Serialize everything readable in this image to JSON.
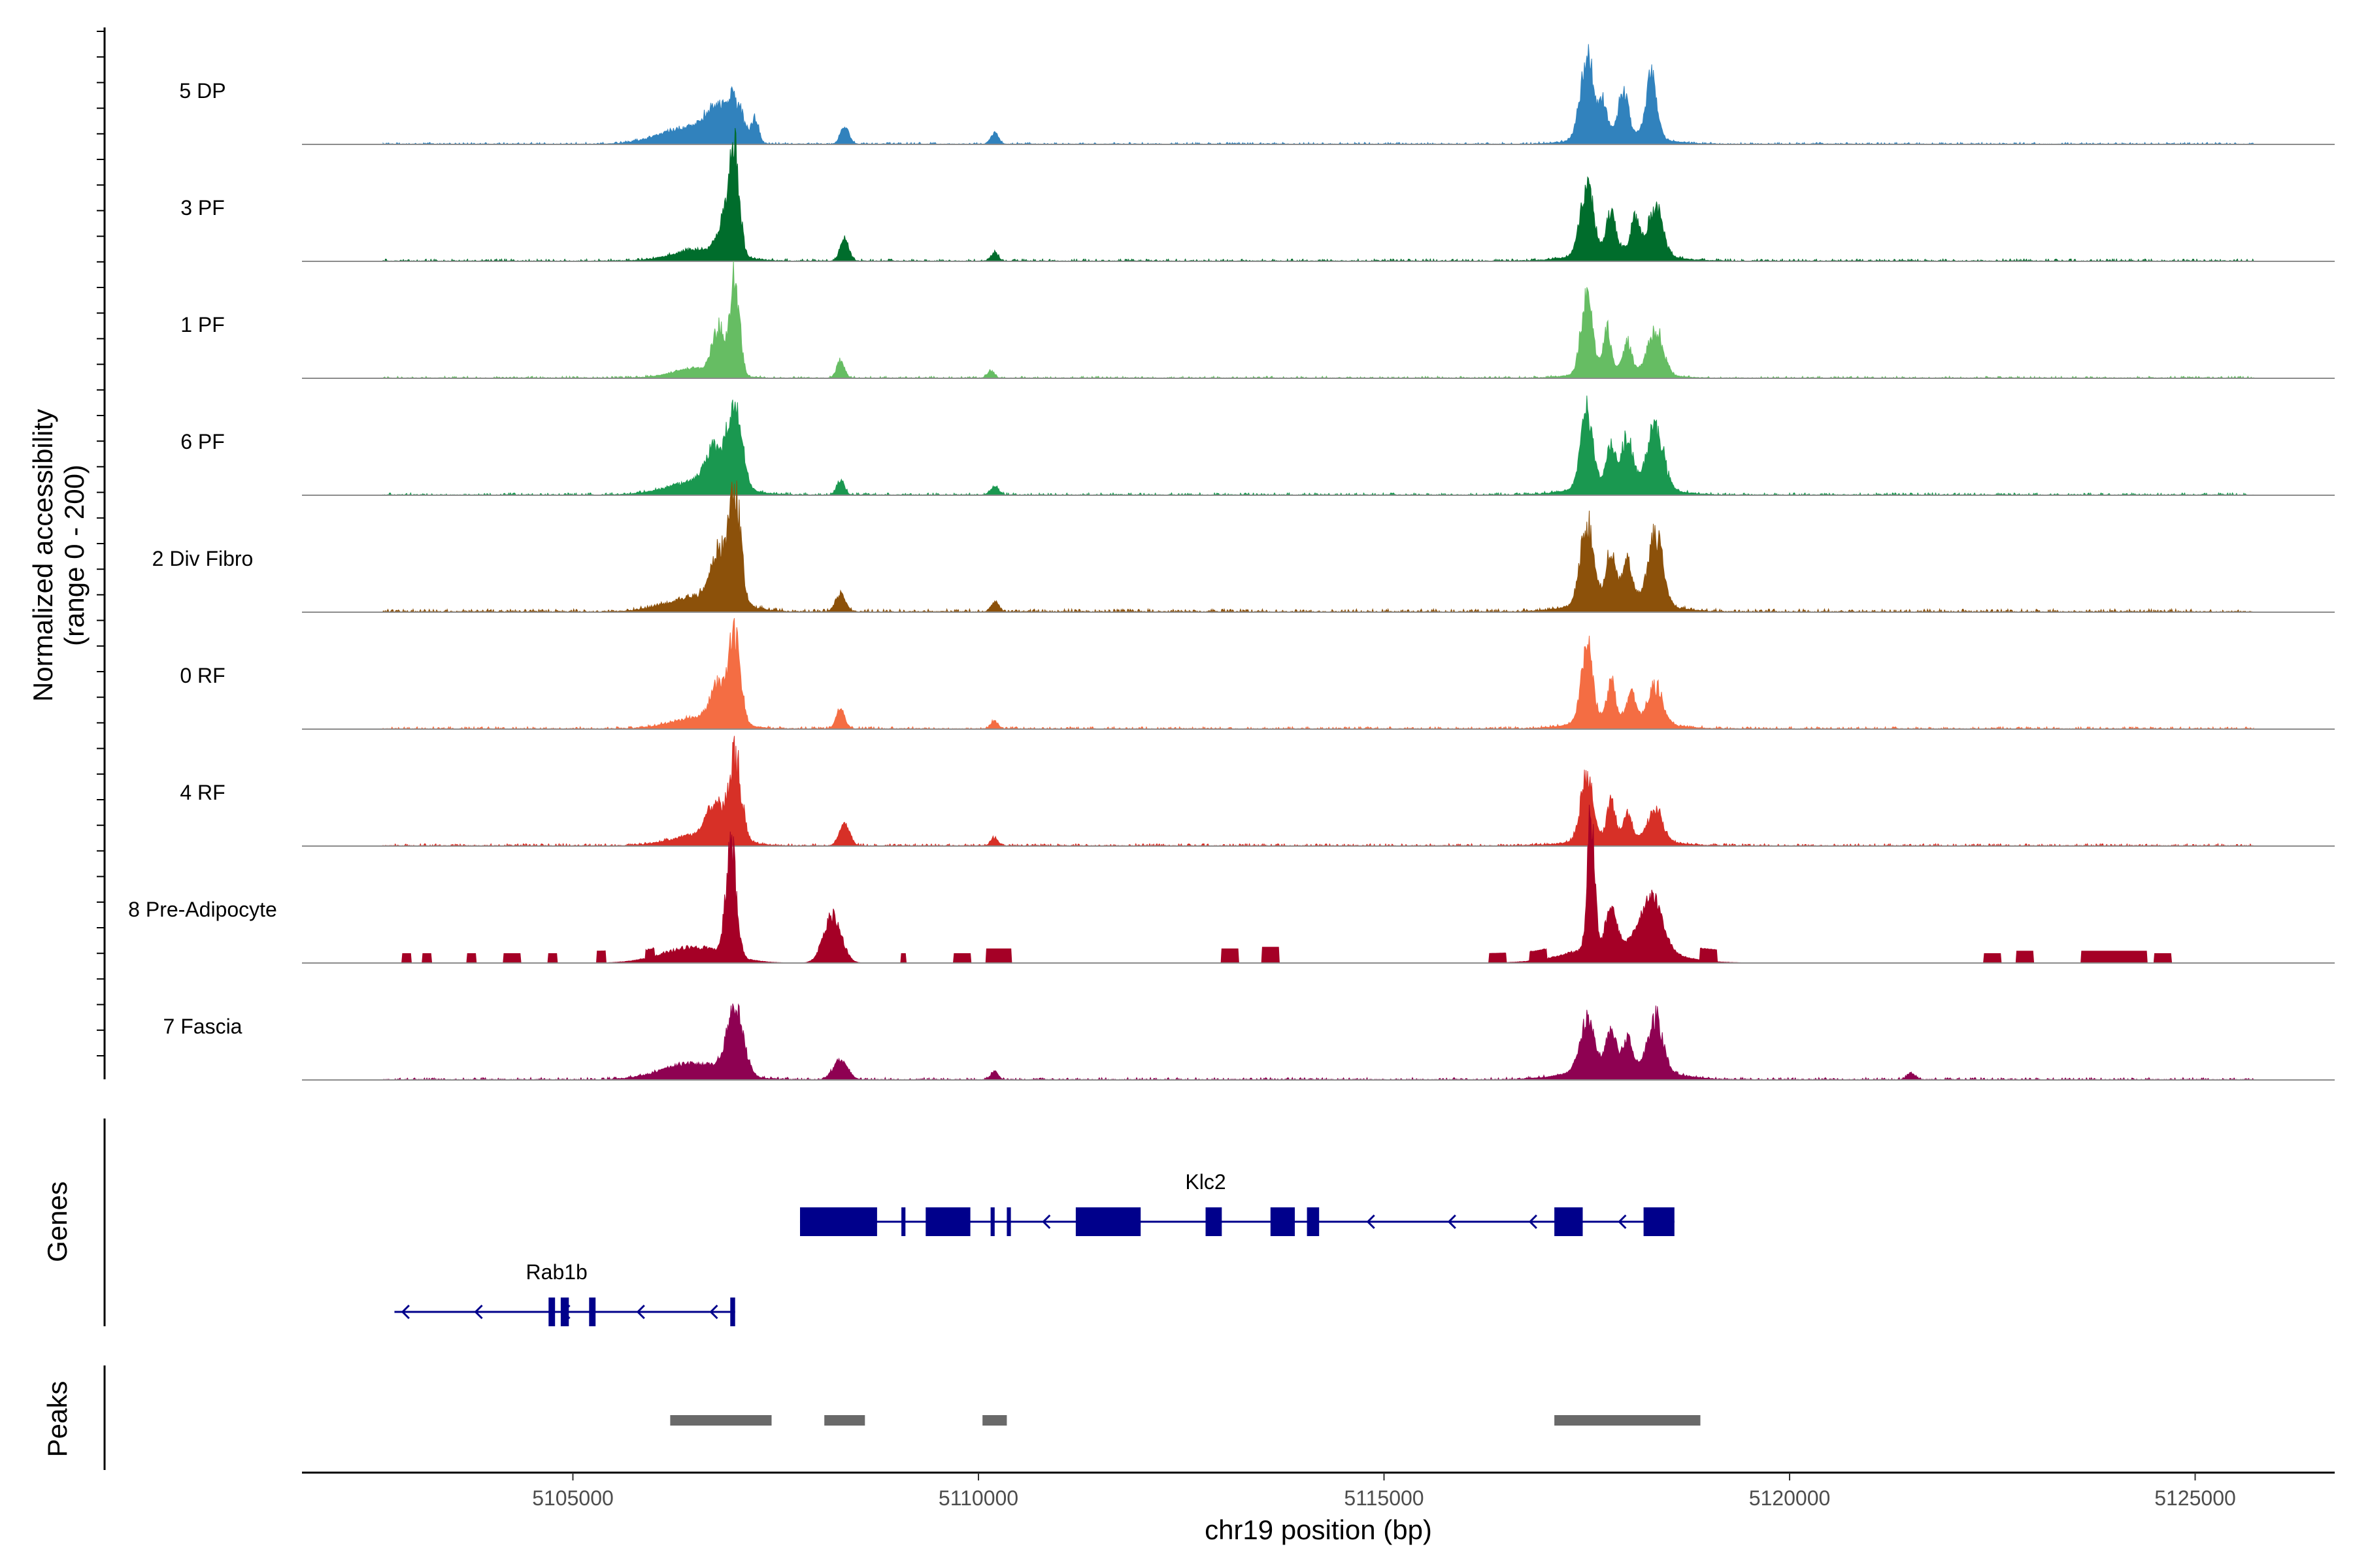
{
  "chart_data": {
    "type": "coverage-track",
    "x_axis": {
      "label": "chr19 position (bp)",
      "range": [
        5101660,
        5126720
      ],
      "ticks": [
        5105000,
        5110000,
        5115000,
        5120000,
        5125000
      ],
      "tick_labels": [
        "5105000",
        "5110000",
        "5115000",
        "5120000",
        "5125000"
      ]
    },
    "y_axis": {
      "label_line1": "Normalized accessibility",
      "label_line2": "(range 0 - 200)",
      "range": [
        0,
        200
      ]
    },
    "tracks": [
      {
        "name": "5 DP",
        "color": "#3182bd",
        "bg": 2.5,
        "baseline": 0.5,
        "peaks": [
          [
            5106400,
            800,
            20,
            3
          ],
          [
            5106750,
            300,
            35,
            5
          ],
          [
            5107000,
            230,
            50,
            5
          ],
          [
            5107250,
            100,
            30,
            4
          ],
          [
            5108350,
            120,
            22,
            3
          ],
          [
            5110200,
            110,
            14,
            3
          ],
          [
            5117500,
            180,
            105,
            5
          ],
          [
            5117700,
            110,
            40,
            5
          ],
          [
            5117950,
            130,
            55,
            5
          ],
          [
            5118300,
            150,
            80,
            5
          ],
          [
            5117900,
            900,
            15,
            3
          ]
        ]
      },
      {
        "name": "3 PF",
        "color": "#006d2c",
        "bg": 3,
        "baseline": 1,
        "peaks": [
          [
            5106600,
            800,
            15,
            3
          ],
          [
            5106900,
            200,
            55,
            5
          ],
          [
            5107000,
            130,
            108,
            6
          ],
          [
            5108350,
            120,
            28,
            3
          ],
          [
            5110200,
            100,
            10,
            3
          ],
          [
            5117500,
            180,
            85,
            5
          ],
          [
            5117800,
            120,
            50,
            5
          ],
          [
            5118100,
            130,
            40,
            5
          ],
          [
            5118350,
            200,
            60,
            5
          ],
          [
            5117900,
            1000,
            15,
            3
          ]
        ]
      },
      {
        "name": "1 PF",
        "color": "#66bd63",
        "bg": 2.5,
        "baseline": 1,
        "peaks": [
          [
            5106550,
            700,
            12,
            3
          ],
          [
            5106800,
            180,
            55,
            5
          ],
          [
            5107000,
            130,
            115,
            6
          ],
          [
            5108300,
            110,
            22,
            3
          ],
          [
            5110150,
            100,
            8,
            3
          ],
          [
            5117500,
            160,
            100,
            5
          ],
          [
            5117750,
            100,
            50,
            5
          ],
          [
            5118000,
            110,
            35,
            5
          ],
          [
            5118350,
            200,
            55,
            5
          ],
          [
            5117900,
            900,
            12,
            3
          ]
        ]
      },
      {
        "name": "6 PF",
        "color": "#1a9850",
        "bg": 3,
        "baseline": 1,
        "peaks": [
          [
            5106600,
            900,
            18,
            3
          ],
          [
            5106750,
            250,
            45,
            5
          ],
          [
            5107000,
            200,
            100,
            5
          ],
          [
            5108300,
            110,
            18,
            3
          ],
          [
            5110200,
            110,
            10,
            3
          ],
          [
            5117500,
            170,
            90,
            5
          ],
          [
            5117800,
            110,
            50,
            5
          ],
          [
            5118000,
            150,
            55,
            5
          ],
          [
            5118350,
            220,
            75,
            5
          ],
          [
            5117900,
            1000,
            18,
            3
          ]
        ]
      },
      {
        "name": "2 Div Fibro",
        "color": "#8c510a",
        "bg": 4,
        "baseline": 1,
        "peaks": [
          [
            5106600,
            900,
            20,
            3
          ],
          [
            5106800,
            220,
            60,
            5
          ],
          [
            5107000,
            160,
            130,
            6
          ],
          [
            5108300,
            140,
            22,
            3
          ],
          [
            5110200,
            110,
            12,
            3
          ],
          [
            5117500,
            180,
            95,
            5
          ],
          [
            5117800,
            130,
            60,
            5
          ],
          [
            5118000,
            120,
            50,
            5
          ],
          [
            5118350,
            200,
            85,
            5
          ],
          [
            5117900,
            1000,
            20,
            3
          ]
        ]
      },
      {
        "name": "0 RF",
        "color": "#f46d43",
        "bg": 3,
        "baseline": 1,
        "peaks": [
          [
            5106600,
            800,
            15,
            3
          ],
          [
            5106800,
            220,
            45,
            5
          ],
          [
            5107000,
            160,
            110,
            6
          ],
          [
            5108300,
            120,
            25,
            3
          ],
          [
            5110200,
            100,
            10,
            3
          ],
          [
            5117500,
            160,
            95,
            5
          ],
          [
            5117800,
            110,
            45,
            5
          ],
          [
            5118050,
            120,
            30,
            5
          ],
          [
            5118350,
            200,
            45,
            5
          ],
          [
            5117900,
            1000,
            15,
            3
          ]
        ]
      },
      {
        "name": "4 RF",
        "color": "#d73027",
        "bg": 3,
        "baseline": 1,
        "peaks": [
          [
            5106600,
            800,
            15,
            3
          ],
          [
            5106750,
            220,
            40,
            5
          ],
          [
            5107000,
            180,
            100,
            6
          ],
          [
            5108350,
            140,
            28,
            3
          ],
          [
            5110200,
            100,
            10,
            3
          ],
          [
            5117500,
            170,
            80,
            5
          ],
          [
            5117800,
            110,
            45,
            5
          ],
          [
            5118000,
            110,
            28,
            5
          ],
          [
            5118350,
            200,
            40,
            5
          ],
          [
            5117900,
            1000,
            12,
            3
          ]
        ]
      },
      {
        "name": "8 Pre-Adipocyte",
        "color": "#a50026",
        "bg": 0,
        "baseline": 0,
        "peaks": [
          [
            5106500,
            900,
            20,
            3
          ],
          [
            5106950,
            150,
            130,
            6
          ],
          [
            5108200,
            250,
            60,
            3
          ],
          [
            5117550,
            100,
            170,
            6
          ],
          [
            5117800,
            140,
            50,
            3
          ],
          [
            5118300,
            300,
            65,
            3
          ],
          [
            5117900,
            1200,
            25,
            3
          ]
        ],
        "blocks": [
          [
            5102900,
            5103000,
            12
          ],
          [
            5103150,
            5103250,
            12
          ],
          [
            5103700,
            5103800,
            12
          ],
          [
            5104150,
            5104350,
            12
          ],
          [
            5104700,
            5104800,
            12
          ],
          [
            5105300,
            5105400,
            15
          ],
          [
            5105900,
            5106000,
            10
          ],
          [
            5109050,
            5109100,
            12
          ],
          [
            5109700,
            5109900,
            12
          ],
          [
            5110100,
            5110400,
            18
          ],
          [
            5113000,
            5113200,
            18
          ],
          [
            5113500,
            5113700,
            20
          ],
          [
            5116300,
            5116500,
            12
          ],
          [
            5116800,
            5117000,
            12
          ],
          [
            5118900,
            5119100,
            15
          ],
          [
            5122400,
            5122600,
            12
          ],
          [
            5122800,
            5123000,
            15
          ],
          [
            5123600,
            5124400,
            15
          ],
          [
            5124500,
            5124700,
            12
          ]
        ]
      },
      {
        "name": "7 Fascia",
        "color": "#8e0152",
        "bg": 3,
        "baseline": 1,
        "peaks": [
          [
            5106500,
            900,
            20,
            3
          ],
          [
            5107000,
            230,
            85,
            5
          ],
          [
            5108300,
            200,
            25,
            3
          ],
          [
            5110200,
            100,
            10,
            3
          ],
          [
            5117500,
            200,
            60,
            5
          ],
          [
            5117800,
            130,
            45,
            5
          ],
          [
            5118000,
            120,
            35,
            5
          ],
          [
            5118350,
            200,
            65,
            5
          ],
          [
            5117900,
            1100,
            20,
            3
          ],
          [
            5121500,
            120,
            8,
            3
          ]
        ]
      }
    ],
    "genes": [
      {
        "name": "Klc2",
        "color": "#00008b",
        "strand": "-",
        "start": 5107800,
        "end": 5118580,
        "label_pos": 5112800,
        "exons": [
          [
            5107800,
            5108750
          ],
          [
            5109050,
            5109100
          ],
          [
            5109350,
            5109900
          ],
          [
            5110150,
            5110200
          ],
          [
            5110350,
            5110400
          ],
          [
            5111200,
            5112000
          ],
          [
            5112800,
            5113000
          ],
          [
            5113600,
            5113900
          ],
          [
            5114050,
            5114200
          ],
          [
            5117100,
            5117450
          ],
          [
            5118200,
            5118580
          ]
        ],
        "arrows": [
          5108550,
          5110800,
          5114800,
          5115800,
          5116800,
          5117900
        ]
      },
      {
        "name": "Rab1b",
        "color": "#00008b",
        "strand": "-",
        "start": 5102800,
        "end": 5107000,
        "label_pos": 5104800,
        "exons": [
          [
            5104700,
            5104780
          ],
          [
            5104850,
            5104950
          ],
          [
            5105200,
            5105280
          ],
          [
            5106940,
            5107000
          ]
        ],
        "arrows": [
          5102900,
          5103800,
          5104880,
          5105800,
          5106700
        ]
      }
    ],
    "peaks_track": {
      "label": "Peaks",
      "color": "#696969",
      "regions": [
        [
          5106200,
          5107450
        ],
        [
          5108100,
          5108600
        ],
        [
          5110050,
          5110350
        ],
        [
          5117100,
          5118900
        ]
      ]
    },
    "panels": {
      "genes_label": "Genes",
      "peaks_label": "Peaks"
    }
  }
}
